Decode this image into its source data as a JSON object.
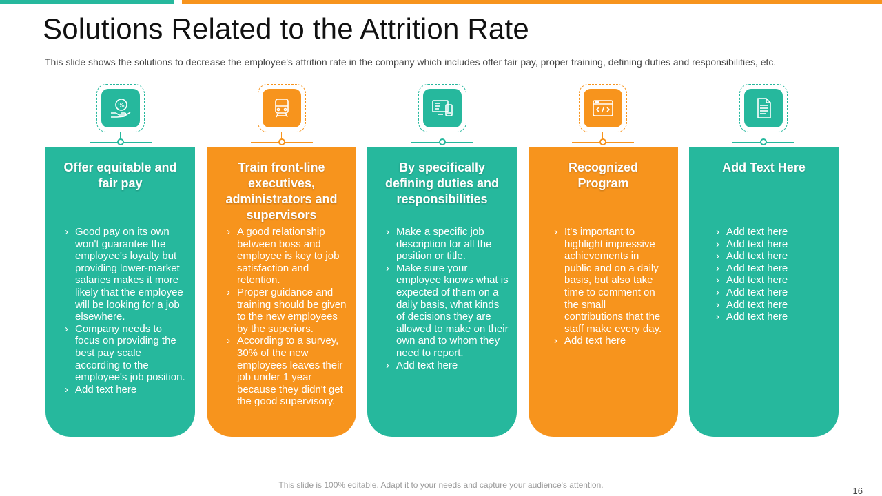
{
  "slide": {
    "title": "Solutions Related to the Attrition Rate",
    "subtitle": "This slide shows the solutions to decrease the employee's attrition rate in the company which includes offer fair pay, proper training, defining duties and responsibilities, etc.",
    "footer": "This slide is 100% editable. Adapt it to your needs and capture your audience's attention.",
    "page_number": "16"
  },
  "colors": {
    "teal": "#26B89D",
    "orange": "#F7941D"
  },
  "cards": [
    {
      "icon": "pay-hand-percent-icon",
      "title": "Offer equitable and fair pay",
      "items": [
        "Good pay on its own won't guarantee the employee's loyalty but providing lower-market salaries makes it more likely that the employee will be looking for a job elsewhere.",
        "Company needs to focus on providing the best pay scale according to the employee's job position.",
        "Add text here"
      ]
    },
    {
      "icon": "training-board-icon",
      "title": "Train front-line executives, administrators and supervisors",
      "items": [
        "A good relationship between boss and employee is key to job satisfaction and retention.",
        "Proper guidance and training should be given to the new employees by the superiors.",
        "According to a survey, 30% of the new employees leaves their job under 1 year because they didn't get the good supervisory."
      ]
    },
    {
      "icon": "devices-duties-icon",
      "title": "By specifically defining duties and responsibilities",
      "items": [
        "Make a specific job description for all the position or title.",
        "Make sure your employee knows what is expected of them on a daily basis, what kinds of decisions they are allowed to make on their own and to whom they need to report.",
        "Add text here"
      ]
    },
    {
      "icon": "browser-code-icon",
      "title": "Recognized Program",
      "items": [
        "It's important to highlight impressive achievements in public and on a daily basis, but also take time to comment on the small contributions that the staff make every day.",
        "Add text here"
      ]
    },
    {
      "icon": "document-icon",
      "title": "Add Text Here",
      "items": [
        "Add text here",
        "Add text here",
        "Add text here",
        "Add text here",
        "Add text here",
        "Add text here",
        "Add text here",
        "Add text here"
      ]
    }
  ]
}
